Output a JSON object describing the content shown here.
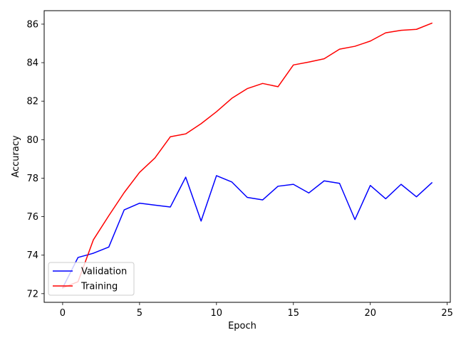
{
  "chart_data": {
    "type": "line",
    "title": "",
    "xlabel": "Epoch",
    "ylabel": "Accuracy",
    "xlim": [
      -1.2,
      25.2
    ],
    "ylim": [
      71.55,
      86.7
    ],
    "xticks": [
      0,
      5,
      10,
      15,
      20,
      25
    ],
    "yticks": [
      72,
      74,
      76,
      78,
      80,
      82,
      84,
      86
    ],
    "grid": false,
    "legend_position": "lower-left",
    "x": [
      0,
      1,
      2,
      3,
      4,
      5,
      6,
      7,
      8,
      9,
      10,
      11,
      12,
      13,
      14,
      15,
      16,
      17,
      18,
      19,
      20,
      21,
      22,
      23,
      24
    ],
    "series": [
      {
        "name": "Validation",
        "color": "#0000ff",
        "values": [
          72.3,
          73.88,
          74.1,
          74.42,
          76.35,
          76.7,
          76.6,
          76.5,
          78.05,
          75.77,
          78.13,
          77.8,
          77.0,
          76.87,
          77.58,
          77.68,
          77.23,
          77.86,
          77.73,
          75.85,
          77.62,
          76.93,
          77.68,
          77.03,
          77.76
        ]
      },
      {
        "name": "Training",
        "color": "#ff0000",
        "values": [
          72.3,
          72.62,
          74.8,
          76.05,
          77.25,
          78.3,
          79.05,
          80.15,
          80.3,
          80.83,
          81.45,
          82.15,
          82.65,
          82.92,
          82.75,
          83.88,
          84.03,
          84.2,
          84.7,
          84.85,
          85.12,
          85.55,
          85.68,
          85.73,
          86.05
        ]
      }
    ]
  }
}
